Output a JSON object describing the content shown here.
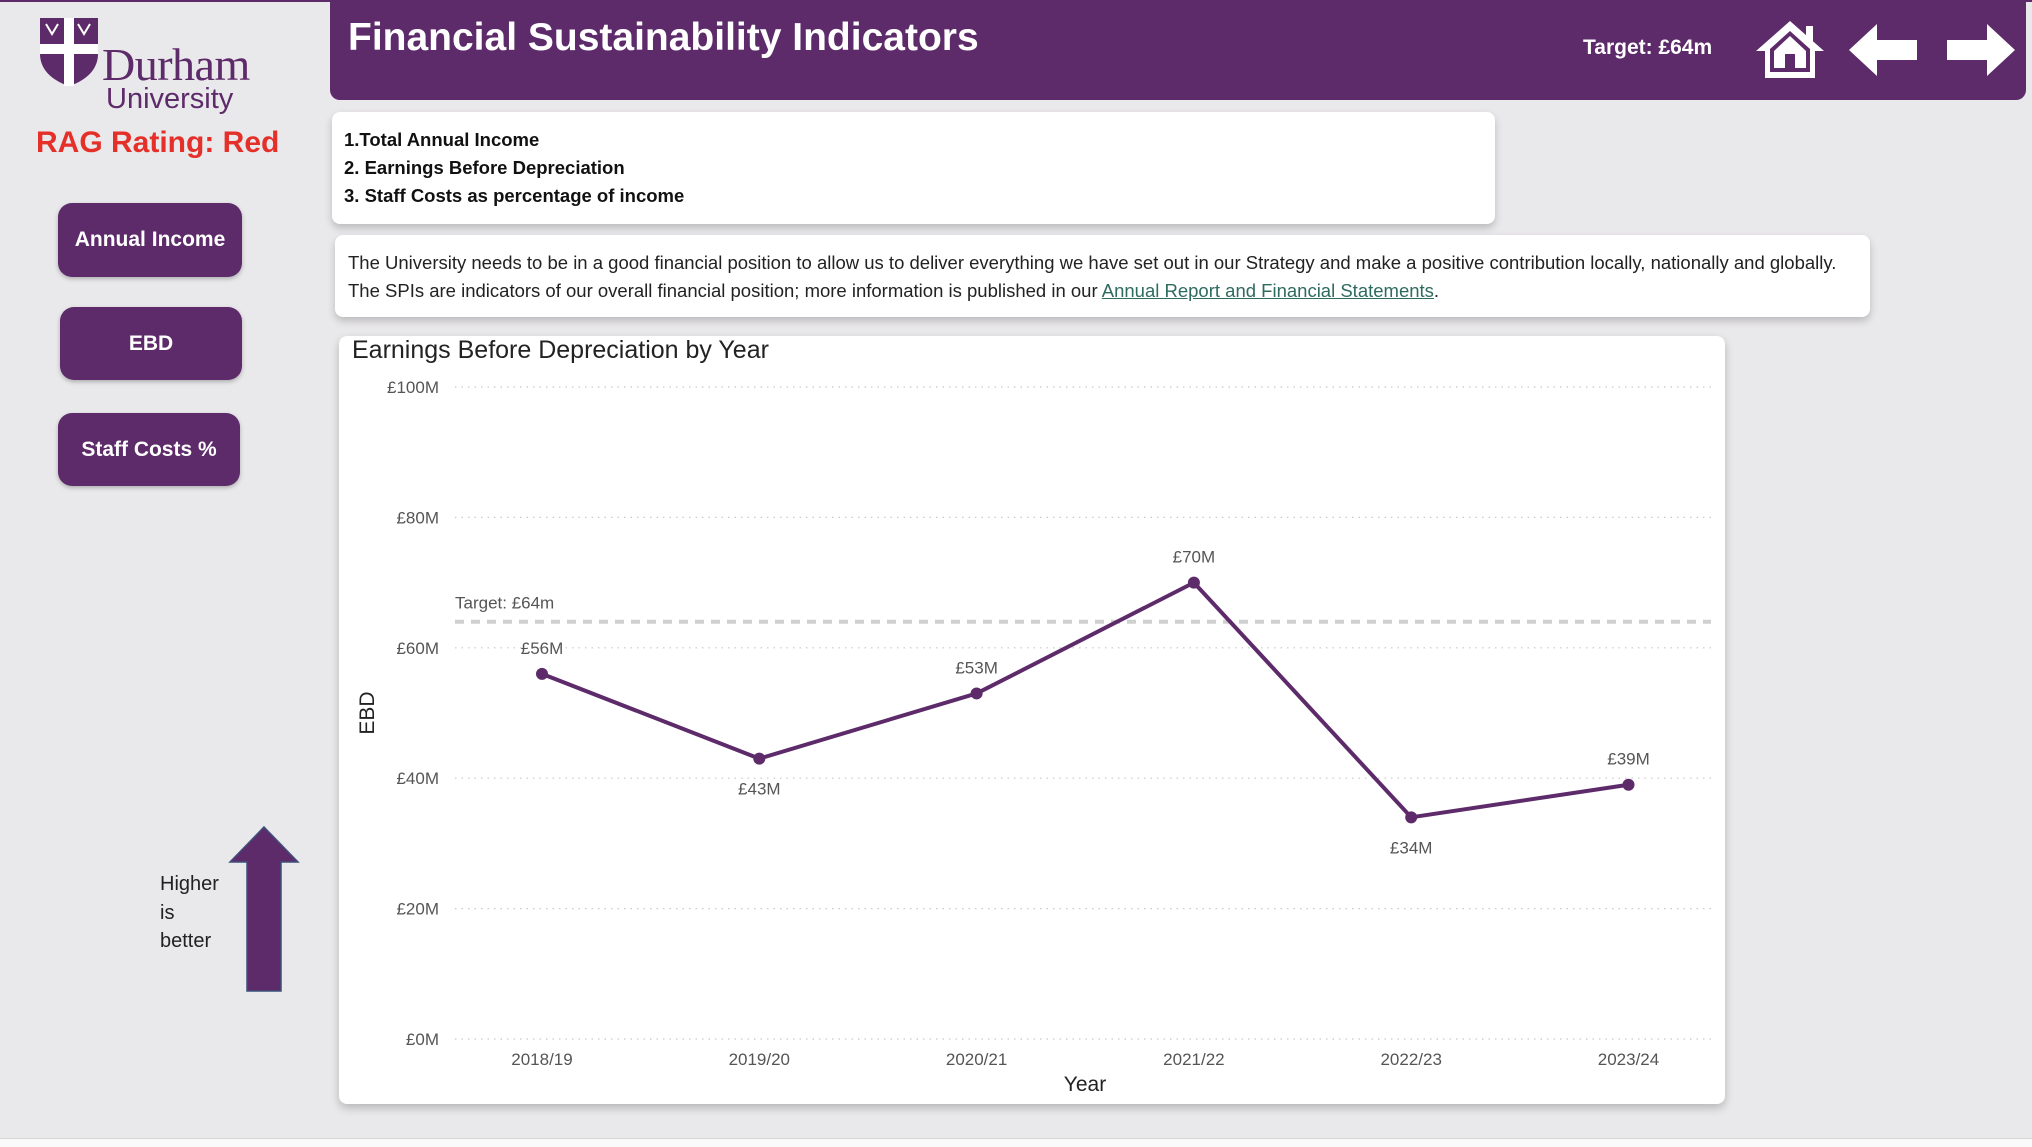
{
  "logo": {
    "name": "Durham",
    "sub": "University"
  },
  "rag": "RAG Rating: Red",
  "nav": {
    "annual_income": "Annual Income",
    "ebd": "EBD",
    "staff_costs": "Staff Costs %"
  },
  "header": {
    "title": "Financial Sustainability Indicators",
    "target": "Target: £64m",
    "icons": [
      "home-icon",
      "arrow-left-icon",
      "arrow-right-icon"
    ]
  },
  "list": [
    "1.Total Annual Income",
    "2. Earnings Before Depreciation",
    "3. Staff Costs as percentage of income"
  ],
  "description": {
    "text": "The University needs to be in a good financial position to allow us to deliver everything we have set out in our Strategy and make a positive contribution locally, nationally and globally. The SPIs are indicators of our overall financial position; more information is published in our ",
    "link": "Annual Report and Financial Statements",
    "after": "."
  },
  "higher_better": [
    "Higher",
    "is",
    "better"
  ],
  "colors": {
    "brand": "#5d2a6a",
    "rag_red": "#e5302a",
    "line": "#5d2a6a",
    "target_line": "#d0d0d0"
  },
  "chart_data": {
    "type": "line",
    "title": "Earnings Before Depreciation by Year",
    "xlabel": "Year",
    "ylabel": "EBD",
    "categories": [
      "2018/19",
      "2019/20",
      "2020/21",
      "2021/22",
      "2022/23",
      "2023/24"
    ],
    "values": [
      56,
      43,
      53,
      70,
      34,
      39
    ],
    "data_labels": [
      "£56M",
      "£43M",
      "£53M",
      "£70M",
      "£34M",
      "£39M"
    ],
    "label_position": [
      "above",
      "below",
      "above",
      "above",
      "below",
      "above"
    ],
    "yticks": [
      0,
      20,
      40,
      60,
      80,
      100
    ],
    "ytick_labels": [
      "£0M",
      "£20M",
      "£40M",
      "£60M",
      "£80M",
      "£100M"
    ],
    "ylim": [
      0,
      100
    ],
    "grid": true,
    "target": {
      "value": 64,
      "label": "Target: £64m"
    }
  }
}
